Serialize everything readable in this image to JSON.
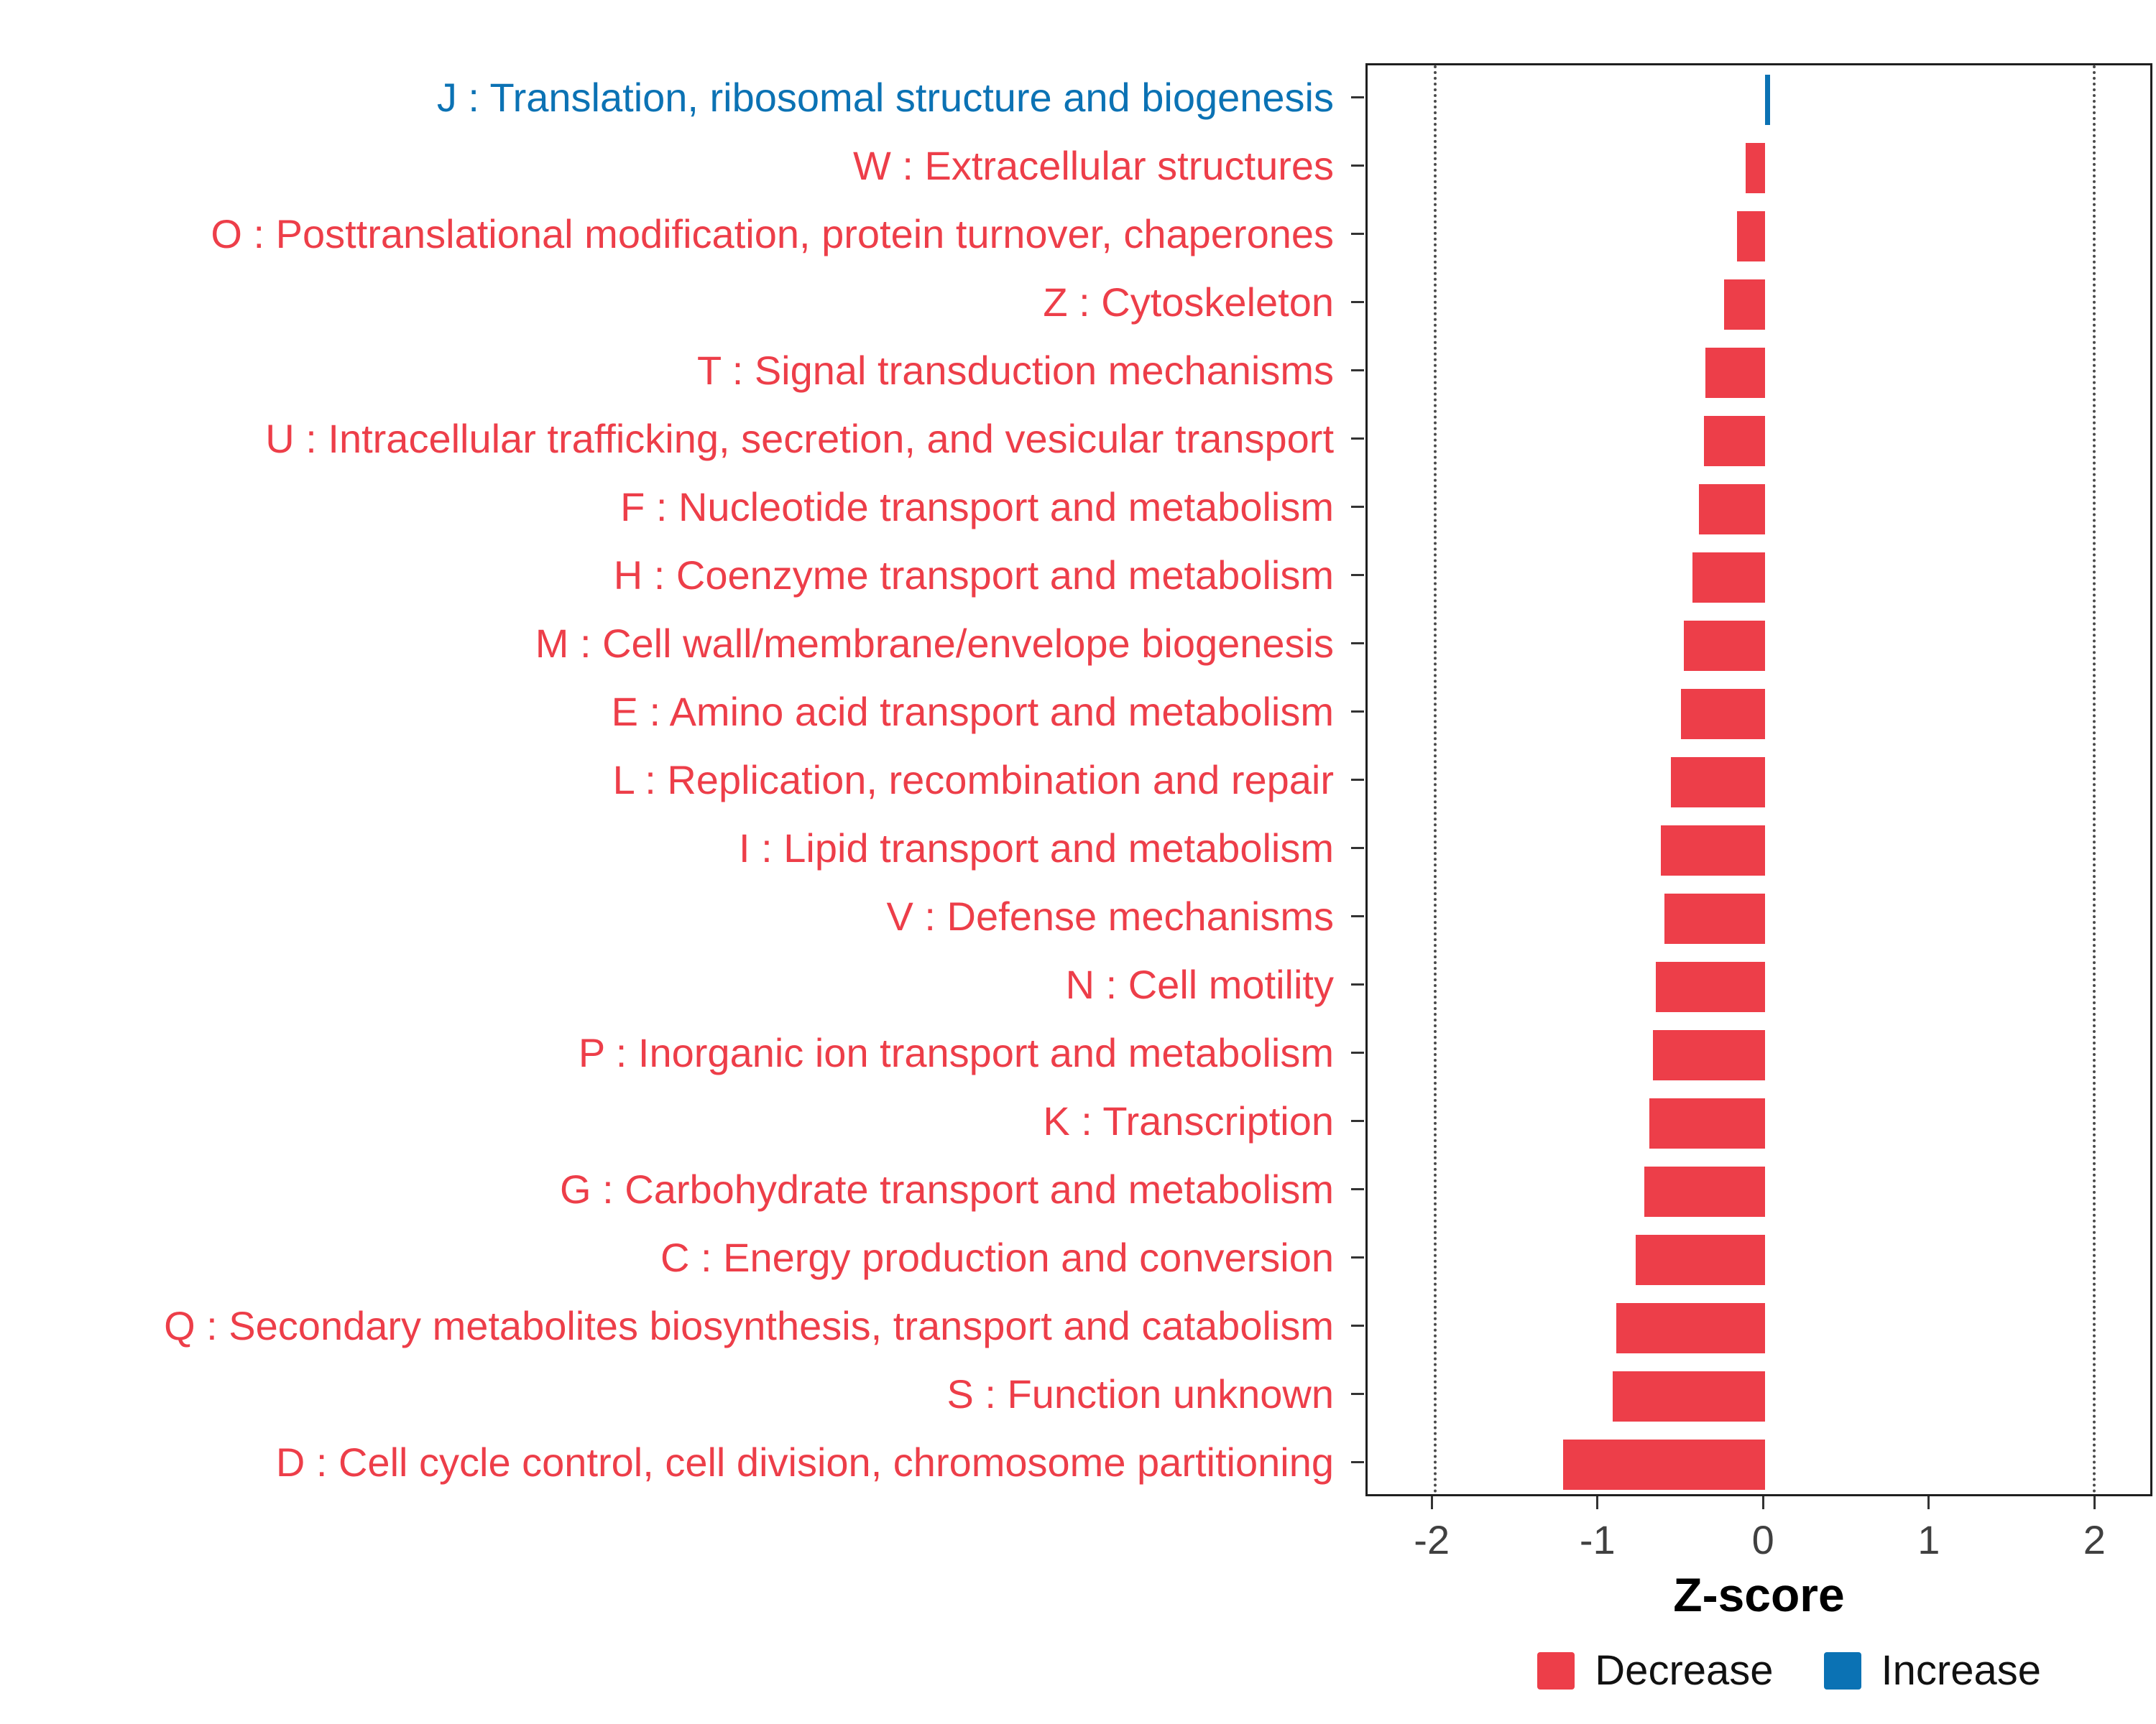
{
  "chart_data": {
    "type": "bar",
    "orientation": "horizontal",
    "title": "",
    "xlabel": "Z-score",
    "ylabel": "",
    "xlim": [
      -2.4,
      2.35
    ],
    "xticks": [
      -2,
      -1,
      0,
      1,
      2
    ],
    "reference_lines": [
      -2,
      2
    ],
    "grid": false,
    "legend_position": "bottom-right",
    "categories": [
      "J : Translation, ribosomal structure and biogenesis",
      "W : Extracellular structures",
      "O : Posttranslational modification, protein turnover, chaperones",
      "Z : Cytoskeleton",
      "T : Signal transduction mechanisms",
      "U : Intracellular trafficking, secretion, and vesicular transport",
      "F : Nucleotide transport and metabolism",
      "H : Coenzyme transport and metabolism",
      "M : Cell wall/membrane/envelope biogenesis",
      "E : Amino acid transport and metabolism",
      "L : Replication, recombination and repair",
      "I : Lipid transport and metabolism",
      "V : Defense mechanisms",
      "N : Cell motility",
      "P : Inorganic ion transport and metabolism",
      "K : Transcription",
      "G : Carbohydrate transport and metabolism",
      "C : Energy production and conversion",
      "Q : Secondary metabolites biosynthesis, transport and catabolism",
      "S : Function unknown",
      "D : Cell cycle control, cell division, chromosome partitioning"
    ],
    "values": [
      0.03,
      -0.12,
      -0.17,
      -0.25,
      -0.36,
      -0.37,
      -0.4,
      -0.44,
      -0.49,
      -0.51,
      -0.57,
      -0.63,
      -0.61,
      -0.66,
      -0.68,
      -0.7,
      -0.73,
      -0.78,
      -0.9,
      -0.92,
      -1.22
    ],
    "groups": [
      "Increase",
      "Decrease",
      "Decrease",
      "Decrease",
      "Decrease",
      "Decrease",
      "Decrease",
      "Decrease",
      "Decrease",
      "Decrease",
      "Decrease",
      "Decrease",
      "Decrease",
      "Decrease",
      "Decrease",
      "Decrease",
      "Decrease",
      "Decrease",
      "Decrease",
      "Decrease",
      "Decrease"
    ],
    "colors": {
      "Decrease": "#ED3E49",
      "Increase": "#0B72B4"
    },
    "axis_text_color": "#404040",
    "legend": [
      {
        "label": "Decrease",
        "key": "Decrease"
      },
      {
        "label": "Increase",
        "key": "Increase"
      }
    ]
  }
}
